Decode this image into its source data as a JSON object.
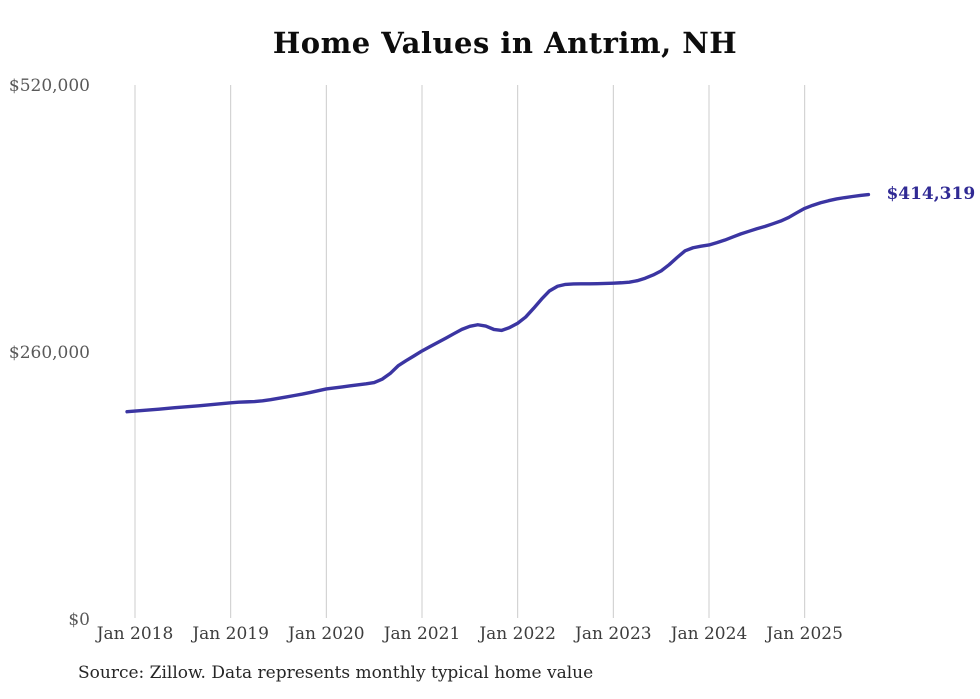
{
  "page": {
    "title": "Home Values in Antrim, NH",
    "end_value_label": "$414,319",
    "source_note": "Source: Zillow. Data represents monthly typical home value"
  },
  "colors": {
    "background": "#ffffff",
    "line": "#3b35a2",
    "end_label": "#302a94",
    "gridline": "#cccccc",
    "y_tick_text": "#595959",
    "x_tick_text": "#3d3d3d",
    "title_text": "#0d0d0d",
    "source_text": "#262626"
  },
  "chart_data": {
    "type": "line",
    "title": "Home Values in Antrim, NH",
    "xlabel": "",
    "ylabel": "",
    "ylim": [
      0,
      520000
    ],
    "grid": "vertical gridlines at each January, no horizontal gridlines, no axis lines",
    "legend_position": "none",
    "frequency": "monthly",
    "start_month": "2017-12",
    "end_month": "2025-09",
    "end_value": 414319,
    "y_ticks": [
      {
        "label": "$0",
        "value": 0
      },
      {
        "label": "$260,000",
        "value": 260000
      },
      {
        "label": "$520,000",
        "value": 520000
      }
    ],
    "x_ticks": [
      {
        "label": "Jan 2018",
        "month_index": 1
      },
      {
        "label": "Jan 2019",
        "month_index": 13
      },
      {
        "label": "Jan 2020",
        "month_index": 25
      },
      {
        "label": "Jan 2021",
        "month_index": 37
      },
      {
        "label": "Jan 2022",
        "month_index": 49
      },
      {
        "label": "Jan 2023",
        "month_index": 61
      },
      {
        "label": "Jan 2024",
        "month_index": 73
      },
      {
        "label": "Jan 2025",
        "month_index": 85
      }
    ],
    "series": [
      {
        "name": "Typical home value",
        "values": [
          202800,
          203500,
          204100,
          204700,
          205300,
          206000,
          206700,
          207400,
          208000,
          208600,
          209300,
          210000,
          210800,
          211500,
          212100,
          212400,
          212700,
          213400,
          214500,
          215900,
          217200,
          218600,
          220000,
          221600,
          223300,
          225000,
          226000,
          227000,
          228000,
          229000,
          230000,
          231200,
          234500,
          240000,
          247500,
          252500,
          257200,
          262000,
          266200,
          270400,
          274500,
          278800,
          283000,
          286000,
          287500,
          286200,
          283000,
          282000,
          284800,
          289000,
          295000,
          303500,
          312500,
          320500,
          325000,
          326800,
          327300,
          327400,
          327400,
          327500,
          327700,
          328000,
          328400,
          329000,
          330400,
          332800,
          336000,
          340000,
          346000,
          353000,
          359500,
          362500,
          364000,
          365200,
          367500,
          370000,
          373000,
          376000,
          378500,
          381000,
          383200,
          385800,
          388500,
          392000,
          396500,
          400800,
          403800,
          406300,
          408300,
          410000,
          411300,
          412400,
          413400,
          414319
        ]
      }
    ]
  }
}
